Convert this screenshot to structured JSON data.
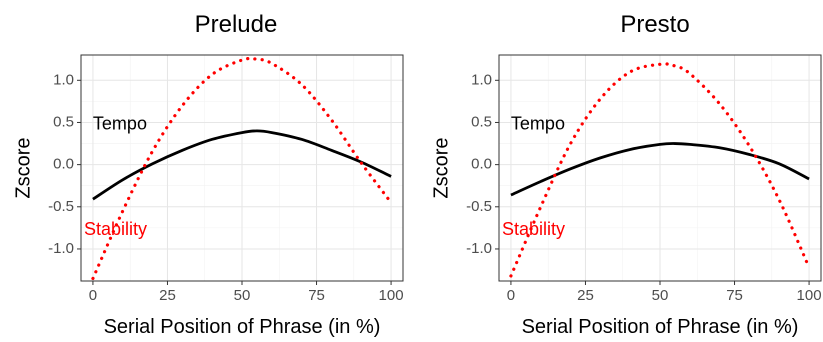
{
  "chart_data": [
    {
      "type": "line",
      "title": "Prelude",
      "xlabel": "Serial Position of Phrase (in %)",
      "ylabel": "Zscore",
      "xlim": [
        -4,
        104
      ],
      "ylim": [
        -1.38,
        1.3
      ],
      "xticks": [
        0,
        25,
        50,
        75,
        100
      ],
      "xtick_labels": [
        "0",
        "25",
        "50",
        "75",
        "100"
      ],
      "yticks": [
        -1.0,
        -0.5,
        0.0,
        0.5,
        1.0
      ],
      "ytick_labels": [
        "-1.0",
        "-0.5",
        "0.0",
        "0.5",
        "1.0"
      ],
      "grid": true,
      "series": [
        {
          "name": "Tempo",
          "label_at": [
            0,
            0.47
          ],
          "style": "solid",
          "color": "#000000",
          "x": [
            0,
            10,
            20,
            30,
            40,
            50,
            55,
            60,
            70,
            80,
            90,
            100
          ],
          "y": [
            -0.41,
            -0.18,
            0.01,
            0.17,
            0.3,
            0.38,
            0.4,
            0.38,
            0.3,
            0.17,
            0.03,
            -0.14
          ]
        },
        {
          "name": "Stability",
          "label_at": [
            -3,
            -0.78
          ],
          "style": "dotted",
          "color": "#ff0000",
          "x": [
            0,
            10,
            20,
            30,
            40,
            50,
            55,
            60,
            70,
            80,
            90,
            100
          ],
          "y": [
            -1.35,
            -0.55,
            0.16,
            0.7,
            1.07,
            1.24,
            1.25,
            1.2,
            0.95,
            0.53,
            0.02,
            -0.45
          ]
        }
      ]
    },
    {
      "type": "line",
      "title": "Presto",
      "xlabel": "Serial Position of Phrase (in %)",
      "ylabel": "Zscore",
      "xlim": [
        -4,
        104
      ],
      "ylim": [
        -1.38,
        1.3
      ],
      "xticks": [
        0,
        25,
        50,
        75,
        100
      ],
      "xtick_labels": [
        "0",
        "25",
        "50",
        "75",
        "100"
      ],
      "yticks": [
        -1.0,
        -0.5,
        0.0,
        0.5,
        1.0
      ],
      "ytick_labels": [
        "-1.0",
        "-0.5",
        "0.0",
        "0.5",
        "1.0"
      ],
      "grid": true,
      "series": [
        {
          "name": "Tempo",
          "label_at": [
            0,
            0.47
          ],
          "style": "solid",
          "color": "#000000",
          "x": [
            0,
            10,
            20,
            30,
            40,
            50,
            55,
            60,
            70,
            80,
            90,
            100
          ],
          "y": [
            -0.36,
            -0.2,
            -0.05,
            0.08,
            0.18,
            0.24,
            0.25,
            0.24,
            0.2,
            0.12,
            0.01,
            -0.17
          ]
        },
        {
          "name": "Stability",
          "label_at": [
            -3,
            -0.78
          ],
          "style": "dotted",
          "color": "#ff0000",
          "x": [
            0,
            10,
            20,
            30,
            40,
            50,
            55,
            60,
            70,
            80,
            90,
            100
          ],
          "y": [
            -1.32,
            -0.5,
            0.25,
            0.78,
            1.1,
            1.19,
            1.17,
            1.08,
            0.72,
            0.22,
            -0.42,
            -1.22
          ]
        }
      ]
    }
  ]
}
